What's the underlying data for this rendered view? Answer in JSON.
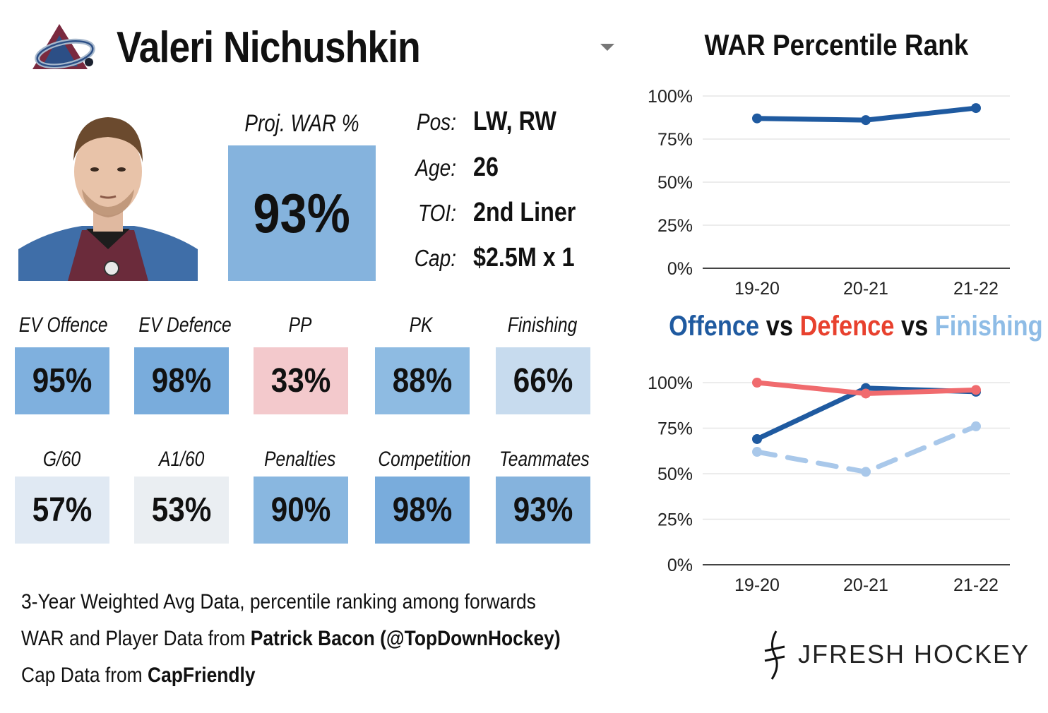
{
  "header": {
    "player_name": "Valeri Nichushkin"
  },
  "proj_war": {
    "label": "Proj. WAR %",
    "value": "93%",
    "color": "#85b3dd"
  },
  "info": [
    {
      "key": "Pos:",
      "value": "LW, RW"
    },
    {
      "key": "Age:",
      "value": "26"
    },
    {
      "key": "TOI:",
      "value": "2nd Liner"
    },
    {
      "key": "Cap:",
      "value": "$2.5M x 1"
    }
  ],
  "stats": [
    {
      "label": "EV Offence",
      "value": "95%",
      "color": "#7fb0de"
    },
    {
      "label": "EV Defence",
      "value": "98%",
      "color": "#79acdc"
    },
    {
      "label": "PP",
      "value": "33%",
      "color": "#f3c9cc"
    },
    {
      "label": "PK",
      "value": "88%",
      "color": "#8ebbe2"
    },
    {
      "label": "Finishing",
      "value": "66%",
      "color": "#c7dbee"
    },
    {
      "label": "G/60",
      "value": "57%",
      "color": "#e0e9f3"
    },
    {
      "label": "A1/60",
      "value": "53%",
      "color": "#eaeef2"
    },
    {
      "label": "Penalties",
      "value": "90%",
      "color": "#89b7e0"
    },
    {
      "label": "Competition",
      "value": "98%",
      "color": "#79acdc"
    },
    {
      "label": "Teammates",
      "value": "93%",
      "color": "#85b3dd"
    }
  ],
  "footer": {
    "line1": "3-Year Weighted Avg Data, percentile ranking among forwards",
    "line2_prefix": "WAR and Player Data from ",
    "line2_bold": "Patrick Bacon (@TopDownHockey)",
    "line3_prefix": "Cap Data from ",
    "line3_bold": "CapFriendly"
  },
  "brand": {
    "name": "JFRESH HOCKEY"
  },
  "chart_data": [
    {
      "type": "line",
      "title": "WAR Percentile Rank",
      "categories": [
        "19-20",
        "20-21",
        "21-22"
      ],
      "yticks": [
        "0%",
        "25%",
        "50%",
        "75%",
        "100%"
      ],
      "ylim": [
        0,
        100
      ],
      "grid": true,
      "series": [
        {
          "values": [
            87,
            86,
            93
          ],
          "color": "#1f5aa0",
          "dashed": false
        }
      ]
    },
    {
      "type": "line",
      "title_parts": [
        {
          "text": "Offence",
          "color": "#1f5aa0"
        },
        {
          "text": " vs ",
          "color": "#111111"
        },
        {
          "text": "Defence",
          "color": "#e8412e"
        },
        {
          "text": " vs ",
          "color": "#111111"
        },
        {
          "text": "Finishing",
          "color": "#8ebce6"
        }
      ],
      "categories": [
        "19-20",
        "20-21",
        "21-22"
      ],
      "yticks": [
        "0%",
        "25%",
        "50%",
        "75%",
        "100%"
      ],
      "ylim": [
        0,
        100
      ],
      "grid": true,
      "series": [
        {
          "name": "Offence",
          "values": [
            69,
            97,
            95
          ],
          "color": "#1f5aa0",
          "dashed": false
        },
        {
          "name": "Defence",
          "values": [
            100,
            94,
            96
          ],
          "color": "#f06b6e",
          "dashed": false
        },
        {
          "name": "Finishing",
          "values": [
            62,
            51,
            76
          ],
          "color": "#a9c8ea",
          "dashed": true
        }
      ]
    }
  ]
}
